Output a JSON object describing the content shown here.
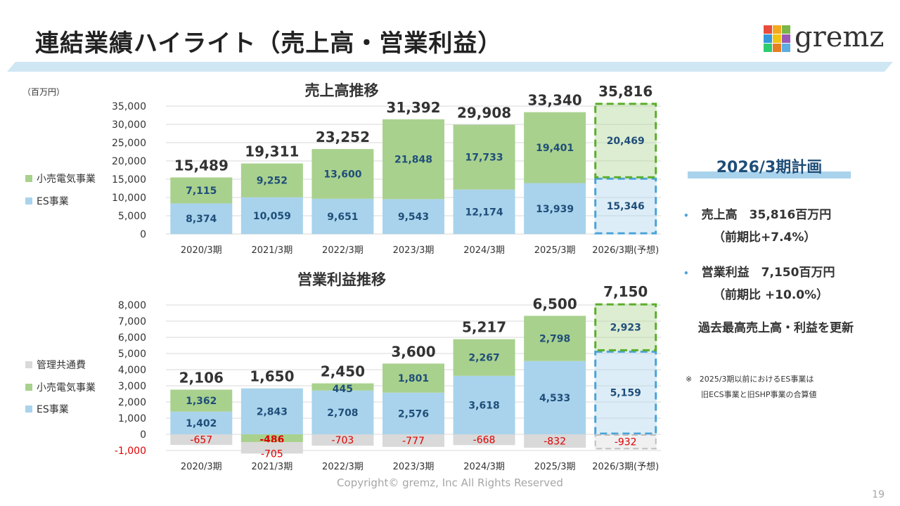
{
  "page": {
    "title": "連結業績ハイライト（売上高・営業利益）",
    "logo_text": "gremz",
    "unit_label": "（百万円）",
    "copyright": "Copyright© gremz, Inc All Rights Reserved",
    "page_number": "19"
  },
  "colors": {
    "es": "#a9d3ec",
    "retail": "#a9d18e",
    "mgmt": "#d9d9d9",
    "forecast_es_border": "#4aa3d8",
    "forecast_retail_border": "#5aae2b",
    "negative_label": "#e00000",
    "inner_label": "#1f4e79",
    "banner": "#cfe7f3",
    "logo_squares": [
      "#e84c3d",
      "#f4a81d",
      "#7ab648",
      "#3498db",
      "#f1c40f",
      "#9b59b6",
      "#2ecc71",
      "#e67e22",
      "#5dade2"
    ]
  },
  "legend": {
    "retail": "小売電気事業",
    "es": "ES事業",
    "mgmt": "管理共通費"
  },
  "chart_data": [
    {
      "type": "bar",
      "stacked": true,
      "title": "売上高推移",
      "categories": [
        "2020/3期",
        "2021/3期",
        "2022/3期",
        "2023/3期",
        "2024/3期",
        "2025/3期",
        "2026/3期(予想)"
      ],
      "series": [
        {
          "name": "ES事業",
          "values": [
            8374,
            10059,
            9651,
            9543,
            12174,
            13939,
            15346
          ]
        },
        {
          "name": "小売電気事業",
          "values": [
            7115,
            9252,
            13600,
            21848,
            17733,
            19401,
            20469
          ]
        }
      ],
      "totals": [
        15489,
        19311,
        23252,
        31392,
        29908,
        33340,
        35816
      ],
      "ylim": [
        0,
        35000
      ],
      "yticks": [
        0,
        5000,
        10000,
        15000,
        20000,
        25000,
        30000,
        35000
      ],
      "grid": true,
      "forecast_index": 6
    },
    {
      "type": "bar",
      "stacked": true,
      "title": "営業利益推移",
      "categories": [
        "2020/3期",
        "2021/3期",
        "2022/3期",
        "2023/3期",
        "2024/3期",
        "2025/3期",
        "2026/3期(予想)"
      ],
      "series": [
        {
          "name": "ES事業",
          "values": [
            1402,
            2843,
            2708,
            2576,
            3618,
            4533,
            5159
          ]
        },
        {
          "name": "小売電気事業",
          "values": [
            1362,
            -486,
            445,
            1801,
            2267,
            2798,
            2923
          ]
        },
        {
          "name": "管理共通費",
          "values": [
            -657,
            -705,
            -703,
            -777,
            -668,
            -832,
            -932
          ]
        }
      ],
      "totals": [
        2106,
        1650,
        2450,
        3600,
        5217,
        6500,
        7150
      ],
      "ylim": [
        -1000,
        8000
      ],
      "yticks": [
        -1000,
        0,
        1000,
        2000,
        3000,
        4000,
        5000,
        6000,
        7000,
        8000
      ],
      "grid": true,
      "forecast_index": 6
    }
  ],
  "plan": {
    "title": "2026/3期計画",
    "items": [
      {
        "text": "売上高　35,816百万円",
        "sub": "（前期比+7.4%）"
      },
      {
        "text": "営業利益　7,150百万円",
        "sub": "（前期比 +10.0%）"
      }
    ],
    "bullet": "•",
    "record": "過去最高売上高・利益を更新",
    "note_mark": "※",
    "note_line1": "2025/3期以前におけるES事業は",
    "note_line2": "旧ECS事業と旧SHP事業の合算値"
  }
}
